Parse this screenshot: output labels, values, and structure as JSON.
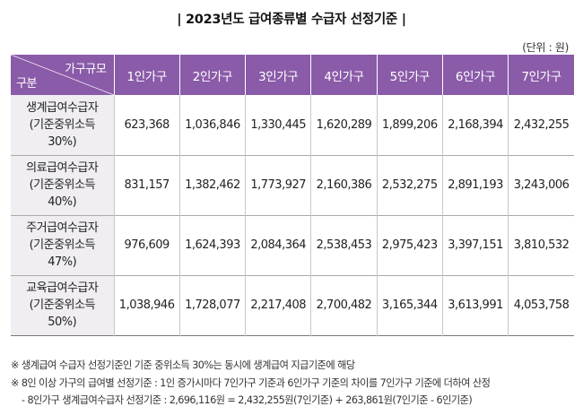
{
  "title": "| 2023년도 급여종류별 수급자 선정기준 |",
  "unit": "(단위 : 원)",
  "table": {
    "corner_top": "가구규모",
    "corner_bottom": "구분",
    "columns": [
      "1인가구",
      "2인가구",
      "3인가구",
      "4인가구",
      "5인가구",
      "6인가구",
      "7인가구"
    ],
    "rows": [
      {
        "label": [
          "생계급여수급자",
          "(기준중위소득",
          "30%)"
        ],
        "values": [
          "623,368",
          "1,036,846",
          "1,330,445",
          "1,620,289",
          "1,899,206",
          "2,168,394",
          "2,432,255"
        ]
      },
      {
        "label": [
          "의료급여수급자",
          "(기준중위소득",
          "40%)"
        ],
        "values": [
          "831,157",
          "1,382,462",
          "1,773,927",
          "2,160,386",
          "2,532,275",
          "2,891,193",
          "3,243,006"
        ]
      },
      {
        "label": [
          "주거급여수급자",
          "(기준중위소득",
          "47%)"
        ],
        "values": [
          "976,609",
          "1,624,393",
          "2,084,364",
          "2,538,453",
          "2,975,423",
          "3,397,151",
          "3,810,532"
        ]
      },
      {
        "label": [
          "교육급여수급자",
          "(기준중위소득",
          "50%)"
        ],
        "values": [
          "1,038,946",
          "1,728,077",
          "2,217,408",
          "2,700,482",
          "3,165,344",
          "3,613,991",
          "4,053,758"
        ]
      }
    ]
  },
  "notes": [
    "※ 생계급여 수급자 선정기준인 기준 중위소득 30%는 동시에 생계급여 지급기준에 해당",
    "※ 8인 이상 가구의 급여별 선정기준 : 1인 증가시마다 7인가구 기준과 6인가구 기준의 차이를 7인가구 기준에 더하여 산정",
    "- 8인가구 생계급여수급자 선정기준 : 2,696,116원 = 2,432,255원(7인기준) + 263,861원(7인기준 - 6인기준)"
  ]
}
